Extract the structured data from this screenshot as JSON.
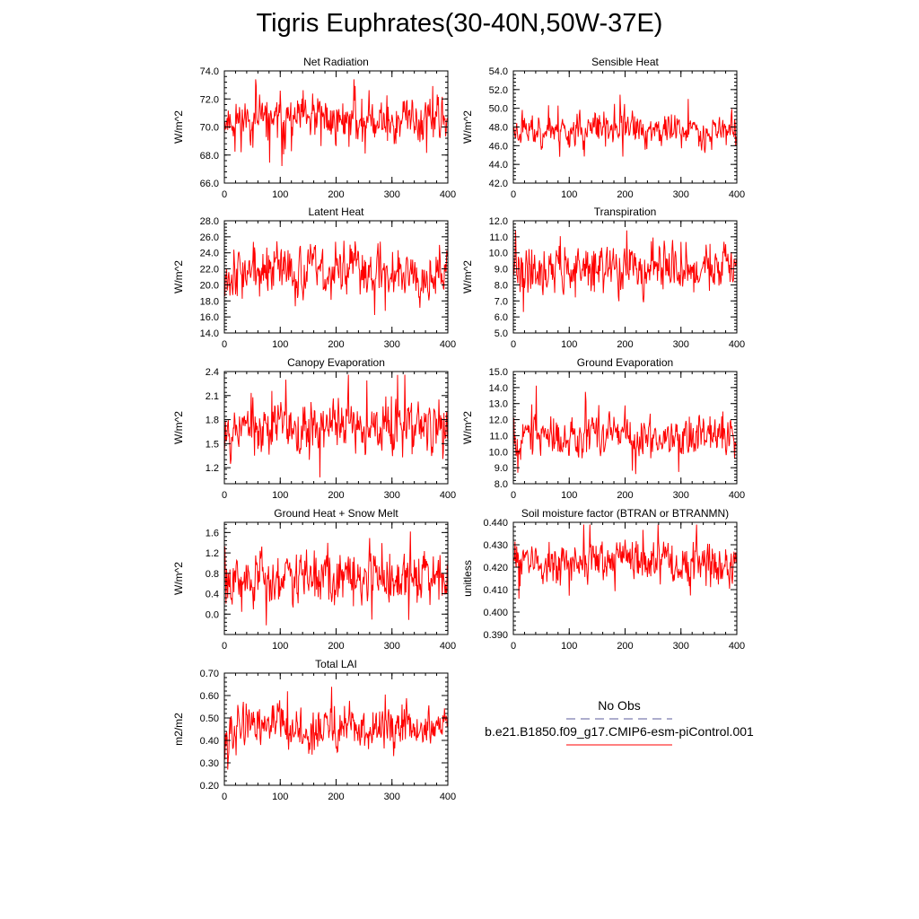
{
  "title": "Tigris Euphrates(30-40N,50W-37E)",
  "legend": {
    "obs_label": "No Obs",
    "case_label": "b.e21.B1850.f09_g17.CMIP6-esm-piControl.001",
    "obs_color": "#5b5b9b",
    "case_color": "#ff0000"
  },
  "chart_data": [
    {
      "type": "line",
      "title": "Net Radiation",
      "ylabel": "W/m^2",
      "xlim": [
        0,
        400
      ],
      "ylim": [
        66.0,
        74.0
      ],
      "yticks": [
        66.0,
        68.0,
        70.0,
        72.0,
        74.0
      ],
      "decimals": 1,
      "xticks": [
        0,
        100,
        200,
        300,
        400
      ],
      "color": "#ff0000",
      "mean": 70.5,
      "amp": 1.1,
      "min": 66.6,
      "max": 73.4,
      "n": 400,
      "seed": 11
    },
    {
      "type": "line",
      "title": "Sensible Heat",
      "ylabel": "W/m^2",
      "xlim": [
        0,
        400
      ],
      "ylim": [
        42.0,
        54.0
      ],
      "yticks": [
        42.0,
        44.0,
        46.0,
        48.0,
        50.0,
        52.0,
        54.0
      ],
      "decimals": 1,
      "xticks": [
        0,
        100,
        200,
        300,
        400
      ],
      "color": "#ff0000",
      "mean": 47.7,
      "amp": 1.2,
      "min": 44.0,
      "max": 52.1,
      "n": 400,
      "seed": 23
    },
    {
      "type": "line",
      "title": "Latent Heat",
      "ylabel": "W/m^2",
      "xlim": [
        0,
        400
      ],
      "ylim": [
        14.0,
        28.0
      ],
      "yticks": [
        14.0,
        16.0,
        18.0,
        20.0,
        22.0,
        24.0,
        26.0,
        28.0
      ],
      "decimals": 1,
      "xticks": [
        0,
        100,
        200,
        300,
        400
      ],
      "color": "#ff0000",
      "mean": 21.8,
      "amp": 2.2,
      "min": 15.0,
      "max": 26.3,
      "n": 400,
      "seed": 37
    },
    {
      "type": "line",
      "title": "Transpiration",
      "ylabel": "W/m^2",
      "xlim": [
        0,
        400
      ],
      "ylim": [
        5.0,
        12.0
      ],
      "yticks": [
        5.0,
        6.0,
        7.0,
        8.0,
        9.0,
        10.0,
        11.0,
        12.0
      ],
      "decimals": 1,
      "xticks": [
        0,
        100,
        200,
        300,
        400
      ],
      "color": "#ff0000",
      "mean": 9.0,
      "amp": 1.0,
      "min": 5.3,
      "max": 11.4,
      "n": 400,
      "seed": 41
    },
    {
      "type": "line",
      "title": "Canopy Evaporation",
      "ylabel": "W/m^2",
      "xlim": [
        0,
        400
      ],
      "ylim": [
        1.0,
        2.4
      ],
      "yticks": [
        1.2,
        1.5,
        1.8,
        2.1,
        2.4
      ],
      "decimals": 1,
      "xticks": [
        0,
        100,
        200,
        300,
        400
      ],
      "color": "#ff0000",
      "mean": 1.72,
      "amp": 0.22,
      "min": 1.08,
      "max": 2.36,
      "n": 400,
      "seed": 53
    },
    {
      "type": "line",
      "title": "Ground Evaporation",
      "ylabel": "W/m^2",
      "xlim": [
        0,
        400
      ],
      "ylim": [
        8.0,
        15.0
      ],
      "yticks": [
        8.0,
        9.0,
        10.0,
        11.0,
        12.0,
        13.0,
        14.0,
        15.0
      ],
      "decimals": 1,
      "xticks": [
        0,
        100,
        200,
        300,
        400
      ],
      "color": "#ff0000",
      "mean": 11.0,
      "amp": 0.8,
      "min": 8.6,
      "max": 14.3,
      "n": 400,
      "seed": 67
    },
    {
      "type": "line",
      "title": "Ground Heat + Snow Melt",
      "ylabel": "W/m^2",
      "xlim": [
        0,
        400
      ],
      "ylim": [
        -0.4,
        1.8
      ],
      "yticks": [
        0.0,
        0.4,
        0.8,
        1.2,
        1.6
      ],
      "decimals": 1,
      "xticks": [
        0,
        100,
        200,
        300,
        400
      ],
      "color": "#ff0000",
      "mean": 0.72,
      "amp": 0.35,
      "min": -0.22,
      "max": 1.62,
      "n": 400,
      "seed": 79
    },
    {
      "type": "line",
      "title": "Soil moisture factor (BTRAN or BTRANMN)",
      "ylabel": "unitless",
      "xlim": [
        0,
        400
      ],
      "ylim": [
        0.39,
        0.44
      ],
      "yticks": [
        0.39,
        0.4,
        0.41,
        0.42,
        0.43,
        0.44
      ],
      "decimals": 3,
      "xticks": [
        0,
        100,
        200,
        300,
        400
      ],
      "color": "#ff0000",
      "mean": 0.4225,
      "amp": 0.006,
      "min": 0.397,
      "max": 0.439,
      "n": 400,
      "seed": 83
    },
    {
      "type": "line",
      "title": "Total LAI",
      "ylabel": "m2/m2",
      "xlim": [
        0,
        400
      ],
      "ylim": [
        0.2,
        0.7
      ],
      "yticks": [
        0.2,
        0.3,
        0.4,
        0.5,
        0.6,
        0.7
      ],
      "decimals": 2,
      "xticks": [
        0,
        100,
        200,
        300,
        400
      ],
      "color": "#ff0000",
      "mean": 0.45,
      "amp": 0.065,
      "min": 0.27,
      "max": 0.65,
      "n": 400,
      "seed": 97
    }
  ]
}
